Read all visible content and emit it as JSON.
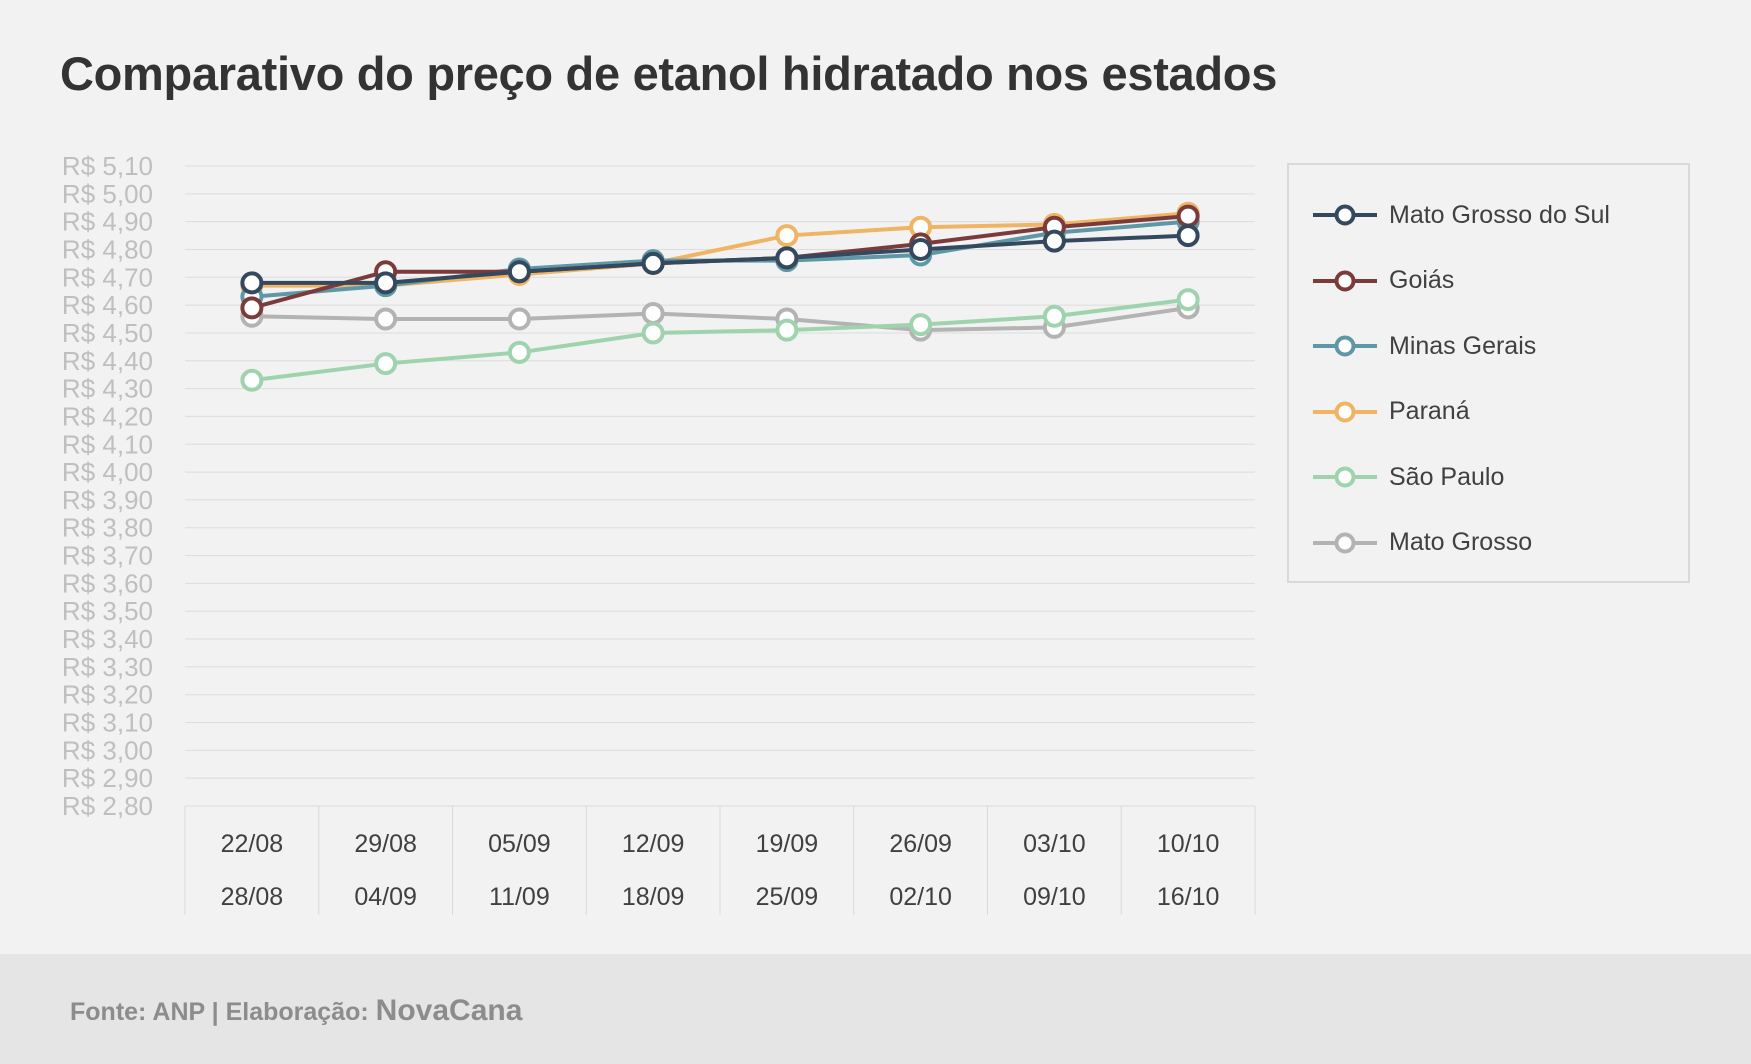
{
  "title": "Comparativo do preço de etanol hidratado nos estados",
  "footer": {
    "source_label": "Fonte: ANP | Elaboração:",
    "brand": "NovaCana"
  },
  "chart_data": {
    "type": "line",
    "title": "Comparativo do preço de etanol hidratado nos estados",
    "categories": [
      [
        "22/08",
        "28/08"
      ],
      [
        "29/08",
        "04/09"
      ],
      [
        "05/09",
        "11/09"
      ],
      [
        "12/09",
        "18/09"
      ],
      [
        "19/09",
        "25/09"
      ],
      [
        "26/09",
        "02/10"
      ],
      [
        "03/10",
        "09/10"
      ],
      [
        "10/10",
        "16/10"
      ]
    ],
    "ylim": [
      2.8,
      5.1
    ],
    "ystep": 0.1,
    "yprefix": "R$ ",
    "grid": true,
    "legend_position": "right",
    "series": [
      {
        "name": "Mato Grosso",
        "color": "#b3b3b3",
        "values": [
          4.56,
          4.55,
          4.55,
          4.57,
          4.55,
          4.51,
          4.52,
          4.59
        ]
      },
      {
        "name": "São Paulo",
        "color": "#9fd3ae",
        "values": [
          4.33,
          4.39,
          4.43,
          4.5,
          4.51,
          4.53,
          4.56,
          4.62
        ]
      },
      {
        "name": "Paraná",
        "color": "#efb464",
        "values": [
          4.67,
          4.67,
          4.71,
          4.75,
          4.85,
          4.88,
          4.89,
          4.93
        ]
      },
      {
        "name": "Minas Gerais",
        "color": "#5e98a6",
        "values": [
          4.63,
          4.67,
          4.73,
          4.76,
          4.76,
          4.78,
          4.86,
          4.9
        ]
      },
      {
        "name": "Goiás",
        "color": "#7b3b3b",
        "values": [
          4.59,
          4.72,
          4.72,
          4.75,
          4.77,
          4.82,
          4.88,
          4.92
        ]
      },
      {
        "name": "Mato Grosso do Sul",
        "color": "#34495e",
        "values": [
          4.68,
          4.68,
          4.72,
          4.75,
          4.77,
          4.8,
          4.83,
          4.85
        ]
      }
    ],
    "legend_order": [
      "Mato Grosso do Sul",
      "Goiás",
      "Minas Gerais",
      "Paraná",
      "São Paulo",
      "Mato Grosso"
    ]
  }
}
